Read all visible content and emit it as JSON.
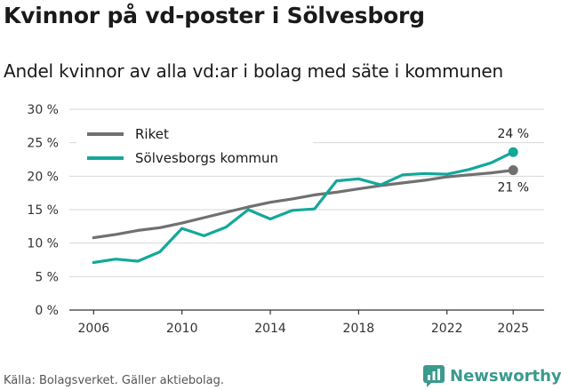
{
  "title": "Kvinnor på vd-poster i Sölvesborg",
  "subtitle": "Andel kvinnor av alla vd:ar i bolag med säte i kommunen",
  "source": "Källa: Bolagsverket. Gäller aktiebolag.",
  "brand": {
    "name": "Newsworthy",
    "icon": "newsworthy-logo-icon"
  },
  "colors": {
    "riket": "#707070",
    "kommun": "#13a89a",
    "grid": "#d9d9d9",
    "axis": "#333333"
  },
  "chart_data": {
    "type": "line",
    "title": "Kvinnor på vd-poster i Sölvesborg",
    "xlabel": "",
    "ylabel": "",
    "x": [
      2006,
      2007,
      2008,
      2009,
      2010,
      2011,
      2012,
      2013,
      2014,
      2015,
      2016,
      2017,
      2018,
      2019,
      2020,
      2021,
      2022,
      2023,
      2024,
      2025
    ],
    "xlim": [
      2004.9,
      2026.4
    ],
    "ylim": [
      0,
      30
    ],
    "x_ticks": [
      2006,
      2010,
      2014,
      2018,
      2022,
      2025
    ],
    "x_tick_labels": [
      "2006",
      "2010",
      "2014",
      "2018",
      "2022",
      "2025"
    ],
    "y_ticks": [
      0,
      5,
      10,
      15,
      20,
      25,
      30
    ],
    "y_tick_labels": [
      "0 %",
      "5 %",
      "10 %",
      "15 %",
      "20 %",
      "25 %",
      "30 %"
    ],
    "grid": "horizontal",
    "legend_position": "top-left",
    "series": [
      {
        "name": "Riket",
        "color": "#707070",
        "values": [
          10.8,
          11.3,
          11.9,
          12.3,
          13.0,
          13.8,
          14.6,
          15.4,
          16.1,
          16.6,
          17.2,
          17.6,
          18.1,
          18.6,
          19.0,
          19.4,
          19.9,
          20.2,
          20.5,
          20.9
        ],
        "end_label": "21 %"
      },
      {
        "name": "Sölvesborgs kommun",
        "color": "#13a89a",
        "values": [
          7.1,
          7.6,
          7.3,
          8.7,
          12.2,
          11.1,
          12.4,
          15.0,
          13.6,
          14.9,
          15.1,
          19.3,
          19.6,
          18.7,
          20.2,
          20.4,
          20.3,
          21.0,
          22.0,
          23.6
        ],
        "end_label": "24 %"
      }
    ]
  }
}
